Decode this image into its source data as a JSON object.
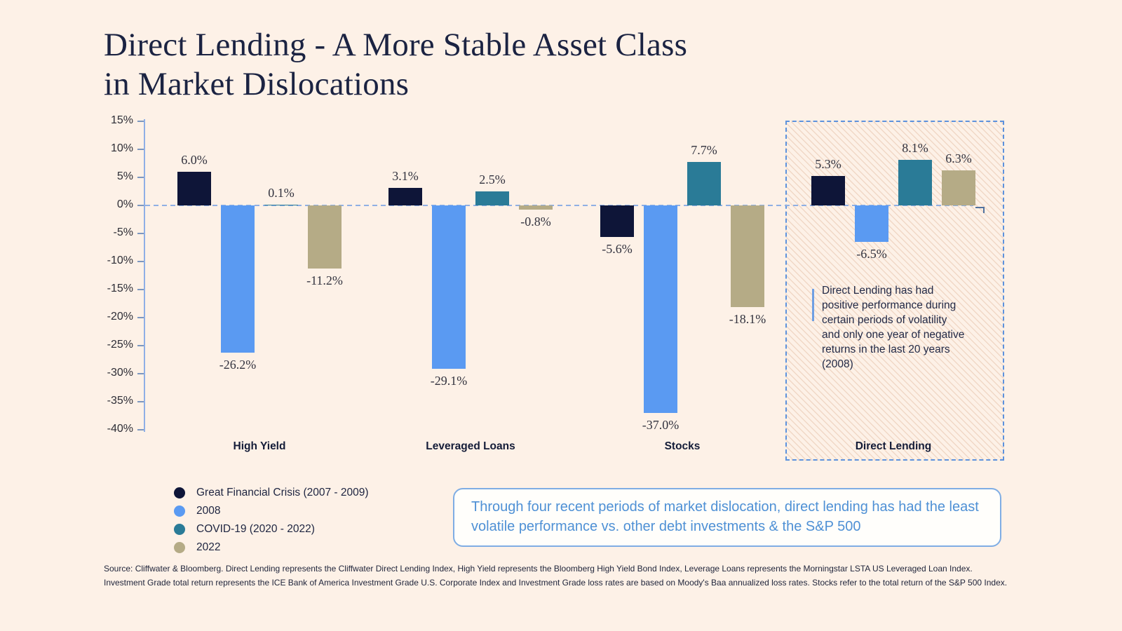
{
  "page": {
    "background": "#fdf1e7",
    "title": "Direct Lending - A More Stable Asset Class\nin Market Dislocations"
  },
  "chart_data": {
    "type": "bar",
    "title": "Direct Lending - A More Stable Asset Class in Market Dislocations",
    "categories": [
      "High Yield",
      "Leveraged Loans",
      "Stocks",
      "Direct Lending"
    ],
    "series": [
      {
        "name": "Great Financial Crisis (2007 - 2009)",
        "color": "#0e1538",
        "values": [
          6.0,
          3.1,
          -5.6,
          5.3
        ]
      },
      {
        "name": "2008",
        "color": "#5a9af2",
        "values": [
          -26.2,
          -29.1,
          -37.0,
          -6.5
        ]
      },
      {
        "name": "COVID-19 (2020 - 2022)",
        "color": "#2a7b97",
        "values": [
          0.1,
          2.5,
          7.7,
          8.1
        ]
      },
      {
        "name": "2022",
        "color": "#b5ab86",
        "values": [
          -11.2,
          -0.8,
          -18.1,
          6.3
        ]
      }
    ],
    "value_label_suffix": "%",
    "yticks": [
      15,
      10,
      5,
      0,
      -5,
      -10,
      -15,
      -20,
      -25,
      -30,
      -35,
      -40
    ],
    "ytick_suffix": "%",
    "ylim": [
      -40,
      15
    ],
    "grid": false,
    "zero_line": "dashed",
    "legend_position": "bottom-left"
  },
  "highlight": {
    "category": "Direct Lending",
    "category_index": 3,
    "note": "Direct Lending has had positive performance during certain periods of volatility and only one year of negative returns in the last 20 years (2008)",
    "border_color": "#5d92dd"
  },
  "callout": {
    "text": "Through four recent periods of market dislocation, direct lending has had the least volatile performance vs. other debt investments & the S&P 500",
    "text_color": "#4e90d5",
    "border_color": "#7fade4"
  },
  "source": {
    "line1": "Source: Cliffwater & Bloomberg. Direct Lending represents the Cliffwater Direct Lending Index, High Yield represents the Bloomberg High Yield Bond Index, Leverage Loans represents the Morningstar LSTA US Leveraged Loan Index.",
    "line2": "Investment Grade total return represents the ICE Bank of America Investment Grade U.S. Corporate Index and Investment Grade loss rates are based on Moody's Baa annualized loss rates. Stocks refer to the total return of the S&P 500 Index."
  },
  "colors": {
    "background": "#fdf1e7",
    "axis": "#8fafe6",
    "title_text": "#1b2342",
    "body_text": "#232a47"
  }
}
